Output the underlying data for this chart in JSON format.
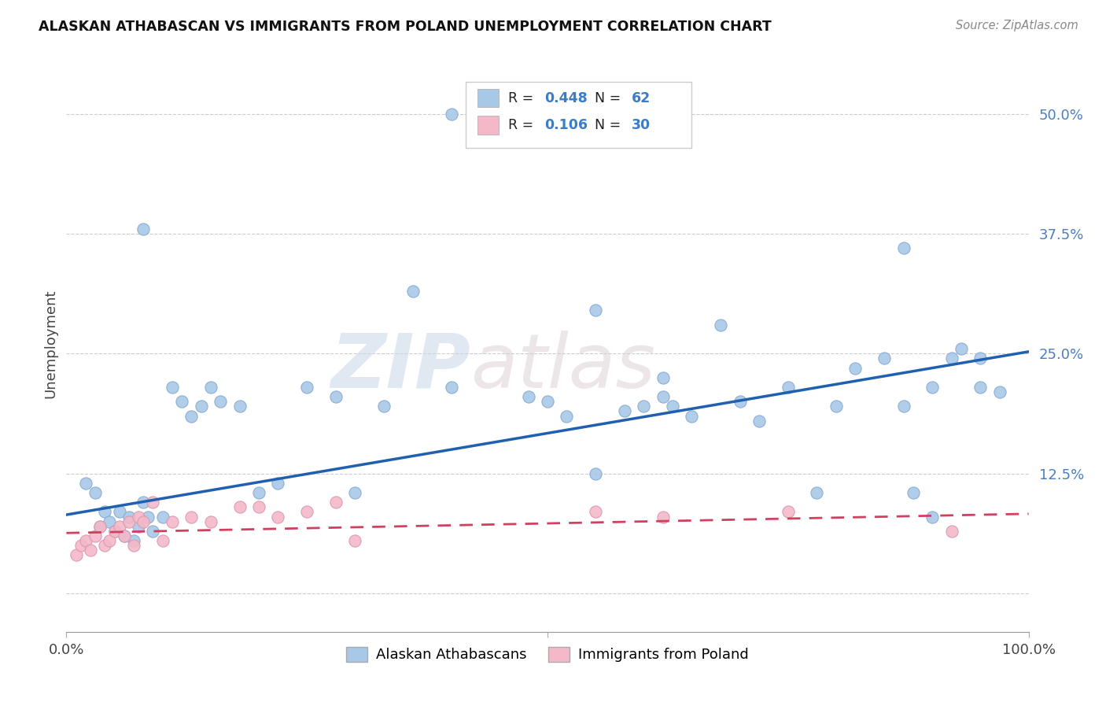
{
  "title": "ALASKAN ATHABASCAN VS IMMIGRANTS FROM POLAND UNEMPLOYMENT CORRELATION CHART",
  "source": "Source: ZipAtlas.com",
  "ylabel": "Unemployment",
  "yticks": [
    0.0,
    0.125,
    0.25,
    0.375,
    0.5
  ],
  "ytick_labels": [
    "",
    "12.5%",
    "25.0%",
    "37.5%",
    "50.0%"
  ],
  "xlim": [
    0.0,
    1.0
  ],
  "ylim": [
    -0.04,
    0.56
  ],
  "watermark_zip": "ZIP",
  "watermark_atlas": "atlas",
  "color_blue": "#a8c8e8",
  "color_pink": "#f4b8c8",
  "line_blue": "#2060b0",
  "line_pink": "#d04060",
  "blue_scatter_x": [
    0.02,
    0.03,
    0.035,
    0.04,
    0.045,
    0.05,
    0.055,
    0.06,
    0.065,
    0.07,
    0.075,
    0.08,
    0.085,
    0.09,
    0.1,
    0.11,
    0.12,
    0.13,
    0.14,
    0.15,
    0.16,
    0.18,
    0.2,
    0.22,
    0.25,
    0.28,
    0.3,
    0.33,
    0.36,
    0.4,
    0.48,
    0.5,
    0.52,
    0.55,
    0.58,
    0.6,
    0.62,
    0.63,
    0.65,
    0.68,
    0.7,
    0.72,
    0.75,
    0.78,
    0.8,
    0.82,
    0.85,
    0.87,
    0.88,
    0.9,
    0.92,
    0.93,
    0.95,
    0.97,
    0.08,
    0.55,
    0.62,
    0.87,
    0.9,
    0.95,
    0.4,
    0.5
  ],
  "blue_scatter_y": [
    0.115,
    0.105,
    0.07,
    0.085,
    0.075,
    0.065,
    0.085,
    0.06,
    0.08,
    0.055,
    0.07,
    0.095,
    0.08,
    0.065,
    0.08,
    0.215,
    0.2,
    0.185,
    0.195,
    0.215,
    0.2,
    0.195,
    0.105,
    0.115,
    0.215,
    0.205,
    0.105,
    0.195,
    0.315,
    0.215,
    0.205,
    0.2,
    0.185,
    0.295,
    0.19,
    0.195,
    0.205,
    0.195,
    0.185,
    0.28,
    0.2,
    0.18,
    0.215,
    0.105,
    0.195,
    0.235,
    0.245,
    0.195,
    0.105,
    0.215,
    0.245,
    0.255,
    0.215,
    0.21,
    0.38,
    0.125,
    0.225,
    0.36,
    0.08,
    0.245,
    0.5,
    0.5
  ],
  "pink_scatter_x": [
    0.01,
    0.015,
    0.02,
    0.025,
    0.03,
    0.035,
    0.04,
    0.045,
    0.05,
    0.055,
    0.06,
    0.065,
    0.07,
    0.075,
    0.08,
    0.09,
    0.1,
    0.11,
    0.13,
    0.15,
    0.18,
    0.2,
    0.22,
    0.25,
    0.28,
    0.3,
    0.55,
    0.62,
    0.75,
    0.92
  ],
  "pink_scatter_y": [
    0.04,
    0.05,
    0.055,
    0.045,
    0.06,
    0.07,
    0.05,
    0.055,
    0.065,
    0.07,
    0.06,
    0.075,
    0.05,
    0.08,
    0.075,
    0.095,
    0.055,
    0.075,
    0.08,
    0.075,
    0.09,
    0.09,
    0.08,
    0.085,
    0.095,
    0.055,
    0.085,
    0.08,
    0.085,
    0.065
  ],
  "blue_line_y_start": 0.082,
  "blue_line_y_end": 0.252,
  "pink_line_y_start": 0.063,
  "pink_line_y_end": 0.083,
  "legend_label1": "Alaskan Athabascans",
  "legend_label2": "Immigrants from Poland",
  "legend_r1_val": "0.448",
  "legend_r2_val": "0.106",
  "legend_n1_val": "62",
  "legend_n2_val": "30"
}
